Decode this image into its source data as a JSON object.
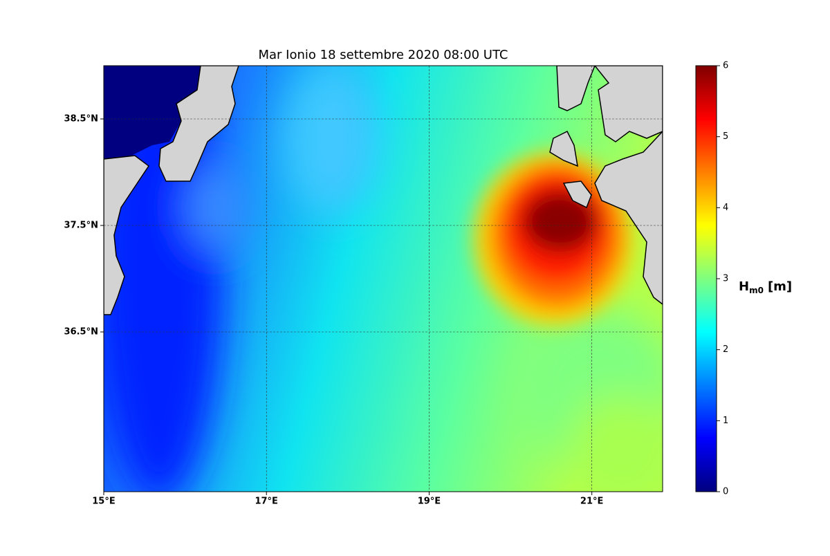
{
  "chart_data": {
    "type": "map",
    "title": "Mar Ionio  18 settembre 2020  08:00 UTC",
    "xlim": [
      15,
      21.87
    ],
    "ylim": [
      35,
      39
    ],
    "xticks": [
      {
        "value": 15,
        "label": "15°E"
      },
      {
        "value": 17,
        "label": "17°E"
      },
      {
        "value": 19,
        "label": "19°E"
      },
      {
        "value": 21,
        "label": "21°E"
      }
    ],
    "yticks": [
      {
        "value": 36.5,
        "label": "36.5°N"
      },
      {
        "value": 37.5,
        "label": "37.5°N"
      },
      {
        "value": 38.5,
        "label": "38.5°N"
      }
    ],
    "grid": true,
    "colorbar": {
      "label": {
        "symbol": "H",
        "subscript": "m0",
        "unit": "[m]"
      },
      "lim": [
        0,
        6
      ],
      "ticks": [
        0,
        1,
        2,
        3,
        4,
        5,
        6
      ],
      "colormap": [
        "#00007f",
        "#0000ff",
        "#007fff",
        "#00ffff",
        "#7fff7f",
        "#ffff00",
        "#ff7f00",
        "#ff0000",
        "#7f0000"
      ]
    }
  }
}
